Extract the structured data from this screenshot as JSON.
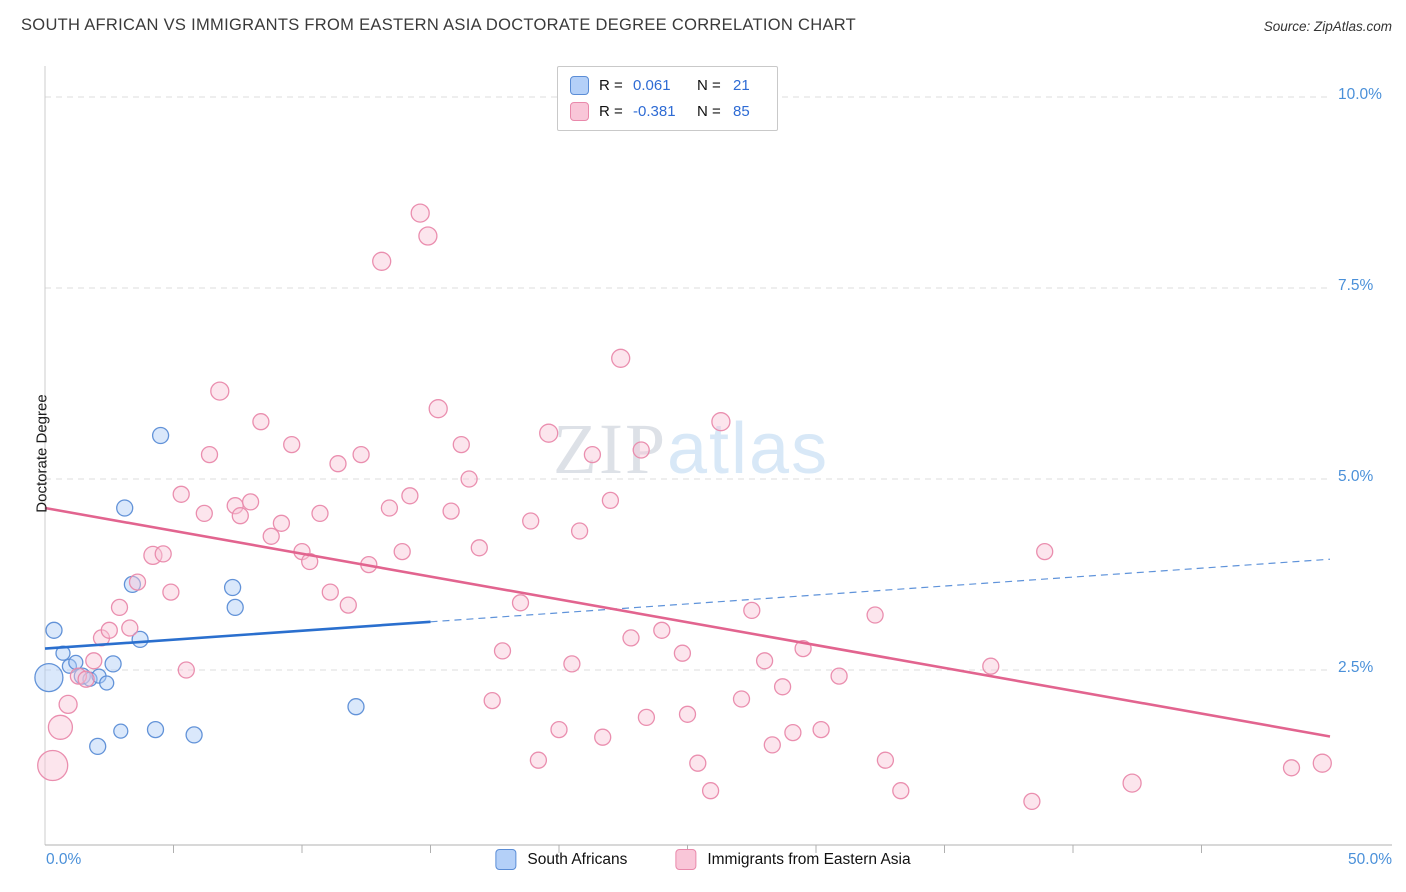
{
  "header": {
    "title": "SOUTH AFRICAN VS IMMIGRANTS FROM EASTERN ASIA DOCTORATE DEGREE CORRELATION CHART",
    "source": "Source: ZipAtlas.com"
  },
  "legend_box": {
    "r_label": "R =",
    "n_label": "N =",
    "entries": [
      {
        "series": "South Africans",
        "r": "0.061",
        "n": "21"
      },
      {
        "series": "Immigrants from Eastern Asia",
        "r": "-0.381",
        "n": "85"
      }
    ]
  },
  "watermark": {
    "part1": "ZIP",
    "part2": "atlas"
  },
  "axes": {
    "ylabel": "Doctorate Degree",
    "x_min_label": "0.0%",
    "x_max_label": "50.0%",
    "y_tick_labels": [
      "10.0%",
      "7.5%",
      "5.0%",
      "2.5%"
    ]
  },
  "bottom_legend": [
    {
      "label": "South Africans"
    },
    {
      "label": "Immigrants from Eastern Asia"
    }
  ],
  "chart_data": {
    "type": "scatter",
    "title": "SOUTH AFRICAN VS IMMIGRANTS FROM EASTERN ASIA DOCTORATE DEGREE CORRELATION CHART",
    "xlabel": "",
    "ylabel": "Doctorate Degree",
    "xlim": [
      0,
      50
    ],
    "ylim": [
      0,
      10.4
    ],
    "x_ticks": [
      0,
      5,
      10,
      15,
      20,
      25,
      30,
      35,
      40,
      45,
      50
    ],
    "y_ticks": [
      2.5,
      5.0,
      7.5,
      10.0
    ],
    "grid": true,
    "legend_position": "top-center",
    "style": {
      "grid_color": "#dcdcdc",
      "axis_color": "#b0b0b0",
      "tick_label_color": "#4a90d9"
    },
    "series": [
      {
        "name": "South Africans",
        "R": 0.061,
        "N": 21,
        "fill": "#aecbf7",
        "stroke": "#5b8dd6",
        "line_color": "#2a6fce",
        "trend": {
          "x_start": 0,
          "y_start": 2.78,
          "x_end": 50,
          "y_end": 3.95,
          "solid_until": 15
        },
        "points": [
          [
            0.15,
            2.4,
            14
          ],
          [
            0.35,
            3.02,
            8
          ],
          [
            0.7,
            2.72,
            7
          ],
          [
            0.95,
            2.55,
            7
          ],
          [
            1.2,
            2.6,
            7
          ],
          [
            1.45,
            2.42,
            8
          ],
          [
            1.75,
            2.38,
            7
          ],
          [
            2.1,
            2.42,
            7
          ],
          [
            2.4,
            2.33,
            7
          ],
          [
            2.05,
            1.5,
            8
          ],
          [
            2.65,
            2.58,
            8
          ],
          [
            2.95,
            1.7,
            7
          ],
          [
            3.1,
            4.62,
            8
          ],
          [
            3.4,
            3.62,
            8
          ],
          [
            3.7,
            2.9,
            8
          ],
          [
            4.5,
            5.57,
            8
          ],
          [
            4.3,
            1.72,
            8
          ],
          [
            5.8,
            1.65,
            8
          ],
          [
            7.3,
            3.58,
            8
          ],
          [
            7.4,
            3.32,
            8
          ],
          [
            12.1,
            2.02,
            8
          ]
        ]
      },
      {
        "name": "Immigrants from Eastern Asia",
        "R": -0.381,
        "N": 85,
        "fill": "#f9c6d8",
        "stroke": "#e989ab",
        "line_color": "#e2648f",
        "trend": {
          "x_start": 0,
          "y_start": 4.62,
          "x_end": 50,
          "y_end": 1.63
        },
        "points": [
          [
            0.3,
            1.25,
            15
          ],
          [
            0.6,
            1.75,
            12
          ],
          [
            0.9,
            2.05,
            9
          ],
          [
            1.3,
            2.42,
            8
          ],
          [
            1.6,
            2.38,
            8
          ],
          [
            1.9,
            2.62,
            8
          ],
          [
            2.2,
            2.92,
            8
          ],
          [
            2.5,
            3.02,
            8
          ],
          [
            2.9,
            3.32,
            8
          ],
          [
            3.3,
            3.05,
            8
          ],
          [
            3.6,
            3.65,
            8
          ],
          [
            4.2,
            4.0,
            9
          ],
          [
            4.6,
            4.02,
            8
          ],
          [
            4.9,
            3.52,
            8
          ],
          [
            5.3,
            4.8,
            8
          ],
          [
            5.5,
            2.5,
            8
          ],
          [
            6.2,
            4.55,
            8
          ],
          [
            6.4,
            5.32,
            8
          ],
          [
            6.8,
            6.15,
            9
          ],
          [
            7.4,
            4.65,
            8
          ],
          [
            7.6,
            4.52,
            8
          ],
          [
            8.0,
            4.7,
            8
          ],
          [
            8.4,
            5.75,
            8
          ],
          [
            8.8,
            4.25,
            8
          ],
          [
            9.2,
            4.42,
            8
          ],
          [
            9.6,
            5.45,
            8
          ],
          [
            10.0,
            4.05,
            8
          ],
          [
            10.3,
            3.92,
            8
          ],
          [
            10.7,
            4.55,
            8
          ],
          [
            11.1,
            3.52,
            8
          ],
          [
            11.4,
            5.2,
            8
          ],
          [
            11.8,
            3.35,
            8
          ],
          [
            12.3,
            5.32,
            8
          ],
          [
            12.6,
            3.88,
            8
          ],
          [
            13.1,
            7.85,
            9
          ],
          [
            13.4,
            4.62,
            8
          ],
          [
            13.9,
            4.05,
            8
          ],
          [
            14.2,
            4.78,
            8
          ],
          [
            14.6,
            8.48,
            9
          ],
          [
            14.9,
            8.18,
            9
          ],
          [
            15.3,
            5.92,
            9
          ],
          [
            15.8,
            4.58,
            8
          ],
          [
            16.2,
            5.45,
            8
          ],
          [
            16.5,
            5.0,
            8
          ],
          [
            16.9,
            4.1,
            8
          ],
          [
            17.4,
            2.1,
            8
          ],
          [
            17.8,
            2.75,
            8
          ],
          [
            18.5,
            3.38,
            8
          ],
          [
            18.9,
            4.45,
            8
          ],
          [
            19.2,
            1.32,
            8
          ],
          [
            19.6,
            5.6,
            9
          ],
          [
            20.0,
            1.72,
            8
          ],
          [
            20.5,
            2.58,
            8
          ],
          [
            20.8,
            4.32,
            8
          ],
          [
            21.3,
            5.32,
            8
          ],
          [
            21.7,
            1.62,
            8
          ],
          [
            22.0,
            4.72,
            8
          ],
          [
            22.4,
            6.58,
            9
          ],
          [
            22.8,
            2.92,
            8
          ],
          [
            23.2,
            5.38,
            8
          ],
          [
            23.4,
            1.88,
            8
          ],
          [
            24.0,
            3.02,
            8
          ],
          [
            24.8,
            2.72,
            8
          ],
          [
            25.0,
            1.92,
            8
          ],
          [
            25.4,
            1.28,
            8
          ],
          [
            25.9,
            0.92,
            8
          ],
          [
            26.3,
            5.75,
            9
          ],
          [
            27.1,
            2.12,
            8
          ],
          [
            27.5,
            3.28,
            8
          ],
          [
            28.0,
            2.62,
            8
          ],
          [
            28.3,
            1.52,
            8
          ],
          [
            28.7,
            2.28,
            8
          ],
          [
            29.1,
            1.68,
            8
          ],
          [
            29.5,
            2.78,
            8
          ],
          [
            30.2,
            1.72,
            8
          ],
          [
            30.9,
            2.42,
            8
          ],
          [
            32.3,
            3.22,
            8
          ],
          [
            32.7,
            1.32,
            8
          ],
          [
            33.3,
            0.92,
            8
          ],
          [
            36.8,
            2.55,
            8
          ],
          [
            38.4,
            0.78,
            8
          ],
          [
            38.9,
            4.05,
            8
          ],
          [
            42.3,
            1.02,
            9
          ],
          [
            48.5,
            1.22,
            8
          ],
          [
            49.7,
            1.28,
            9
          ]
        ]
      }
    ]
  }
}
